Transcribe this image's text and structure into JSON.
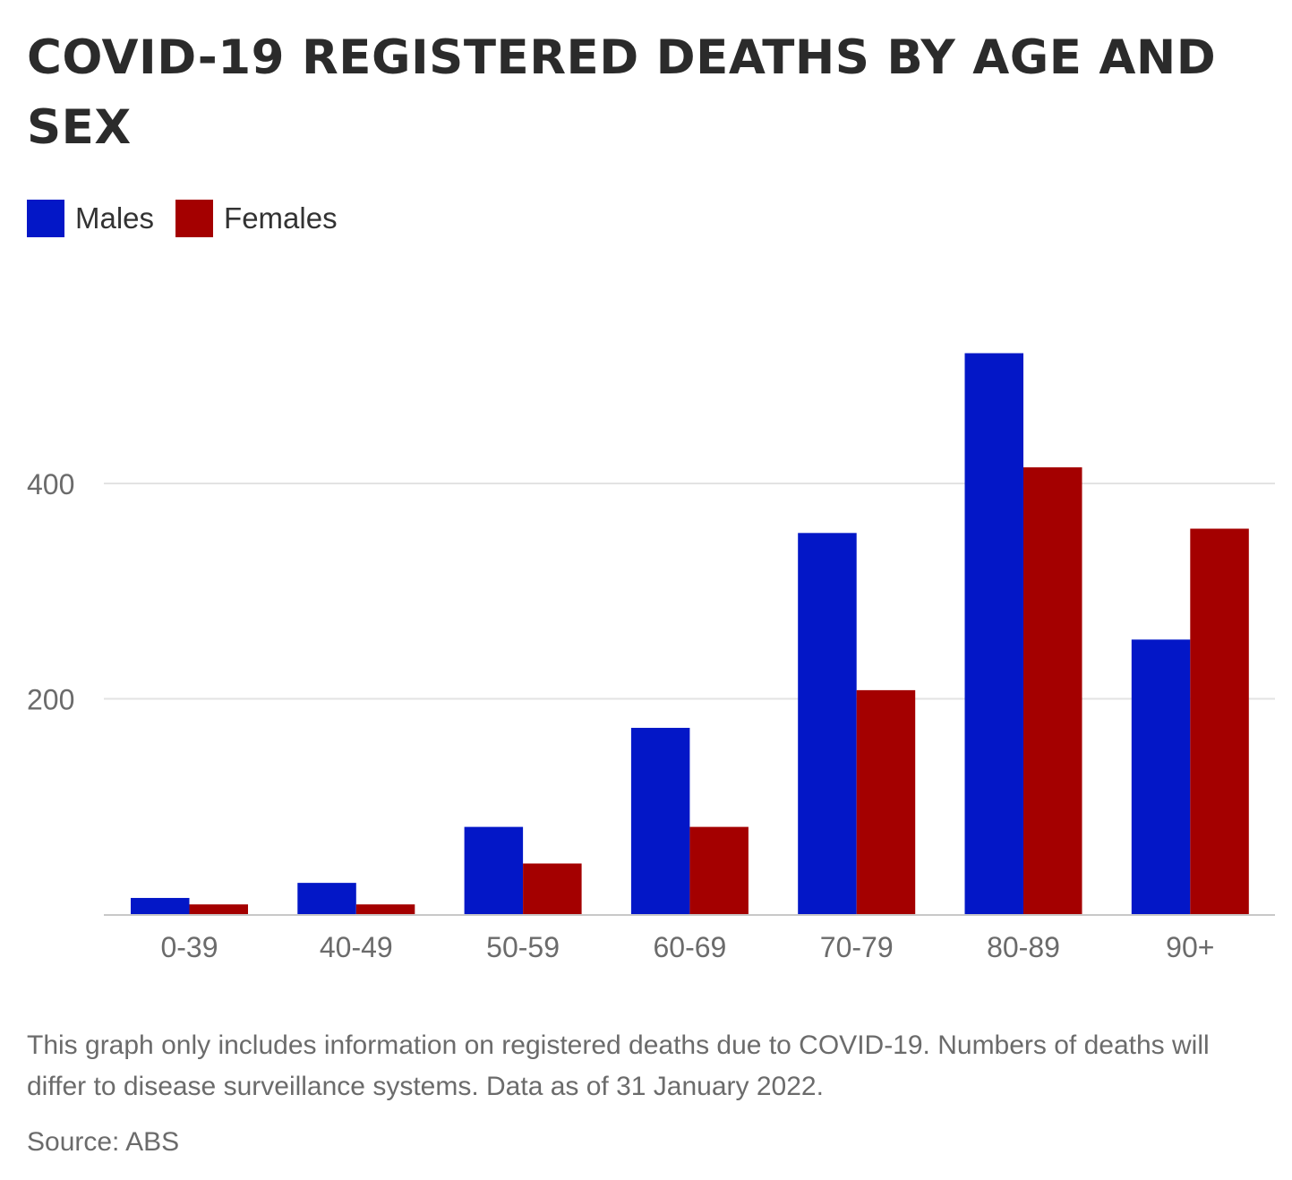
{
  "title": "COVID-19 REGISTERED DEATHS BY AGE AND SEX",
  "legend": {
    "males_label": "Males",
    "females_label": "Females"
  },
  "colors": {
    "males": "#0317c7",
    "females": "#a40000",
    "grid": "#e3e3e3",
    "axis": "#c8c8c8",
    "tick_text": "#6b6b6b"
  },
  "footnote": "This graph only includes information on registered deaths due to COVID-19. Numbers of deaths will differ to disease surveillance systems. Data as of 31 January 2022.",
  "source": "Source: ABS",
  "chart_data": {
    "type": "bar",
    "title": "COVID-19 REGISTERED DEATHS BY AGE AND SEX",
    "xlabel": "",
    "ylabel": "",
    "categories": [
      "0-39",
      "40-49",
      "50-59",
      "60-69",
      "70-79",
      "80-89",
      "90+"
    ],
    "series": [
      {
        "name": "Males",
        "values": [
          15,
          29,
          81,
          173,
          354,
          521,
          255
        ]
      },
      {
        "name": "Females",
        "values": [
          9,
          9,
          47,
          81,
          208,
          415,
          358
        ]
      }
    ],
    "ylim": [
      0,
      540
    ],
    "yticks": [
      200,
      400
    ],
    "grid": true,
    "legend_position": "top-left"
  }
}
